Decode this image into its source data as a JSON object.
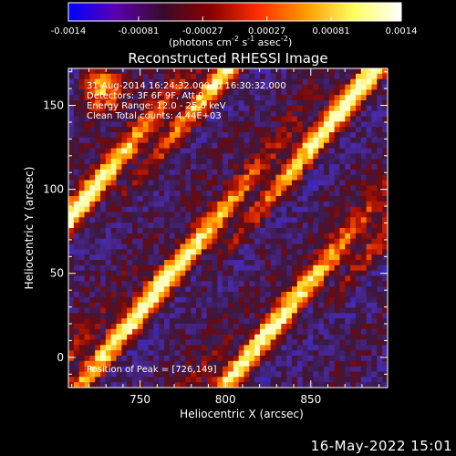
{
  "colorbar": {
    "tick_labels": [
      "-0.0014",
      "-0.00081",
      "-0.00027",
      "0.00027",
      "0.00081",
      "0.0014"
    ],
    "tick_values": [
      -0.0014,
      -0.00081,
      -0.00027,
      0.00027,
      0.00081,
      0.0014
    ],
    "range": [
      -0.0014,
      0.0014
    ],
    "units_line1": "(photons cm",
    "units_exp1": "-2",
    "units_line2": " s",
    "units_exp2": "-1",
    "units_line3": " asec",
    "units_exp3": "-2",
    "units_line4": ")",
    "colors": [
      "#0000ff",
      "#5b00b0",
      "#3a0a2a",
      "#8a0000",
      "#ff3000",
      "#ff9a00",
      "#ffff60",
      "#ffffff"
    ]
  },
  "image": {
    "title": "Reconstructed RHESSI Image",
    "info_lines": [
      "31-Aug-2014 16:24:32.000 to 16:30:32.000",
      "Detectors: 3F 6F 9F, Att 0",
      "Energy Range: 12.0 - 25.0 keV",
      "Clean    Total counts: 4.44E+03"
    ],
    "peak_text": "Position of Peak = [726,149]",
    "xlabel": "Heliocentric X (arcsec)",
    "ylabel": "Heliocentric Y (arcsec)",
    "xticks": [
      "750",
      "800",
      "850"
    ],
    "xtick_values": [
      750,
      800,
      850
    ],
    "yticks": [
      "0",
      "50",
      "100",
      "150"
    ],
    "ytick_values": [
      0,
      50,
      100,
      150
    ],
    "xlim": [
      708,
      895
    ],
    "ylim": [
      -18,
      172
    ],
    "peak": [
      726,
      149
    ],
    "grid": false
  },
  "footer": {
    "timestamp": "16-May-2022 15:01"
  }
}
